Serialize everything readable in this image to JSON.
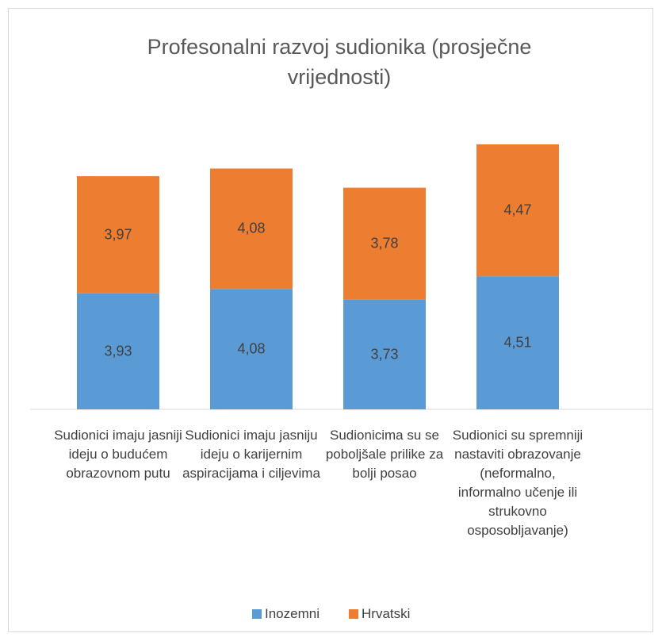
{
  "chart_data": {
    "type": "stacked_bar",
    "title": "Profesonalni razvoj sudionika (prosječne vrijednosti)",
    "categories": [
      "Sudionici imaju jasniji ideju o budućem obrazovnom putu",
      "Sudionici imaju jasniju ideju o karijernim aspiracijama i ciljevima",
      "Sudionicima su se poboljšale prilike za bolji posao",
      "Sudionici su spremniji nastaviti obrazovanje (neformalno, informalno učenje ili strukovno osposobljavanje)"
    ],
    "series": [
      {
        "name": "Inozemni",
        "color": "#5b9bd5",
        "values": [
          3.93,
          4.08,
          3.73,
          4.51
        ],
        "value_labels": [
          "3,93",
          "4,08",
          "3,73",
          "4,51"
        ]
      },
      {
        "name": "Hrvatski",
        "color": "#ed7d31",
        "values": [
          3.97,
          4.08,
          3.78,
          4.47
        ],
        "value_labels": [
          "3,97",
          "4,08",
          "3,78",
          "4,47"
        ]
      }
    ],
    "legend": "bottom"
  }
}
